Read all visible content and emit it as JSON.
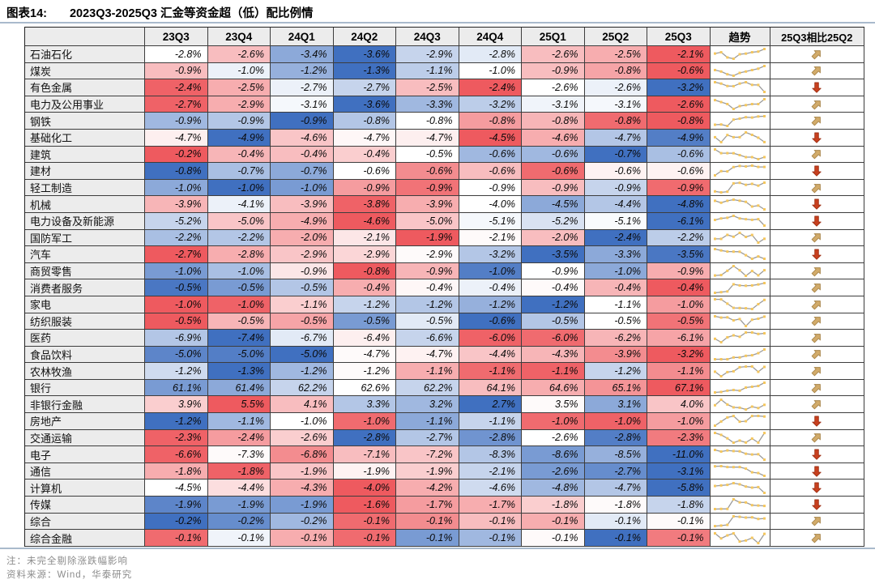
{
  "title": {
    "prefix": "图表14:",
    "text": "2023Q3-2025Q3 汇金等资金超（低）配比例情"
  },
  "notes": [
    "注：未完全剔除涨跌幅影响",
    "资料来源：Wind，华泰研究"
  ],
  "colors": {
    "heat_pos": "#ee5a5f",
    "heat_neg": "#4070c0",
    "arrow_up": "#d2ab6a",
    "arrow_up_edge": "#a8854a",
    "arrow_down": "#c8401f",
    "arrow_down_edge": "#9e3014",
    "spark_line": "#9b9b9b",
    "spark_dot": "#f5c75e",
    "rule": "#a9bacc",
    "header_bg": "#ececec",
    "border": "#3d3d3d"
  },
  "icons": {
    "up": "arrow-up-right",
    "down": "arrow-down"
  },
  "chart_data": {
    "type": "heatmap",
    "title": "图表14: 2023Q3-2025Q3 汇金等资金超（低）配比例情",
    "columns": [
      "23Q3",
      "23Q4",
      "24Q1",
      "24Q2",
      "24Q3",
      "24Q4",
      "25Q1",
      "25Q2",
      "25Q3"
    ],
    "trend_label": "趋势",
    "change_label": "25Q3相比25Q2",
    "value_unit": "%",
    "legend_note": "cell tint: red = high within row, blue = low within row; tints read from screenshot",
    "rows": [
      {
        "label": "石油石化",
        "values": [
          -2.8,
          -2.6,
          -3.4,
          -3.6,
          -2.9,
          -2.8,
          -2.6,
          -2.5,
          -2.1
        ],
        "tints": [
          0,
          0.4,
          -0.6,
          -1,
          -0.3,
          -0.15,
          0.4,
          0.5,
          1
        ],
        "change": "up"
      },
      {
        "label": "煤炭",
        "values": [
          -0.9,
          -1.0,
          -1.2,
          -1.3,
          -1.1,
          -1.0,
          -0.9,
          -0.8,
          -0.6
        ],
        "tints": [
          0.4,
          -0.1,
          -0.55,
          -1,
          -0.35,
          0,
          0.4,
          0.55,
          1
        ],
        "change": "up"
      },
      {
        "label": "有色金属",
        "values": [
          -2.4,
          -2.5,
          -2.7,
          -2.7,
          -2.5,
          -2.4,
          -2.6,
          -2.6,
          -3.2
        ],
        "tints": [
          0.95,
          0.5,
          -0.1,
          -0.3,
          0.4,
          1,
          0,
          -0.1,
          -1
        ],
        "change": "down"
      },
      {
        "label": "电力及公用事业",
        "values": [
          -2.7,
          -2.9,
          -3.1,
          -3.6,
          -3.3,
          -3.2,
          -3.1,
          -3.1,
          -2.6
        ],
        "tints": [
          0.95,
          0.5,
          -0.05,
          -1,
          -0.5,
          -0.35,
          -0.08,
          -0.05,
          1
        ],
        "change": "up"
      },
      {
        "label": "钢铁",
        "values": [
          -0.9,
          -0.9,
          -0.9,
          -0.8,
          -0.8,
          -0.8,
          -0.8,
          -0.8,
          -0.8
        ],
        "tints": [
          -0.5,
          -0.4,
          -1,
          -0.4,
          0,
          0.6,
          0.45,
          0.9,
          1
        ],
        "change": "up"
      },
      {
        "label": "基础化工",
        "values": [
          -4.7,
          -4.9,
          -4.6,
          -4.7,
          -4.7,
          -4.5,
          -4.6,
          -4.7,
          -4.9
        ],
        "tints": [
          0.1,
          -1,
          0.35,
          0.05,
          0.1,
          1,
          0.5,
          -0.4,
          -0.9
        ],
        "change": "down"
      },
      {
        "label": "建筑",
        "values": [
          -0.2,
          -0.4,
          -0.4,
          -0.4,
          -0.5,
          -0.6,
          -0.6,
          -0.7,
          -0.6
        ],
        "tints": [
          1,
          0.45,
          0.4,
          0.3,
          0,
          -0.5,
          -0.5,
          -1,
          -0.45
        ],
        "change": "up"
      },
      {
        "label": "建材",
        "values": [
          -0.8,
          -0.7,
          -0.7,
          -0.6,
          -0.6,
          -0.6,
          -0.6,
          -0.6,
          -0.6
        ],
        "tints": [
          -1,
          -0.45,
          -0.6,
          0,
          0.7,
          0.4,
          0.9,
          0.08,
          0.08
        ],
        "change": "down"
      },
      {
        "label": "轻工制造",
        "values": [
          -1.0,
          -1.0,
          -1.0,
          -0.9,
          -0.9,
          -0.9,
          -0.9,
          -0.9,
          -0.9
        ],
        "tints": [
          -0.6,
          -1,
          -0.7,
          0.6,
          0.85,
          0,
          0.4,
          -0.3,
          0.9
        ],
        "change": "up"
      },
      {
        "label": "机械",
        "values": [
          -3.9,
          -4.1,
          -3.9,
          -3.8,
          -3.9,
          -4.0,
          -4.5,
          -4.4,
          -4.8
        ],
        "tints": [
          0.45,
          -0.1,
          0.4,
          0.95,
          0.5,
          0,
          -0.6,
          -0.4,
          -1
        ],
        "change": "down"
      },
      {
        "label": "电力设备及新能源",
        "values": [
          -5.2,
          -5.0,
          -4.9,
          -4.6,
          -5.0,
          -5.1,
          -5.2,
          -5.1,
          -6.1
        ],
        "tints": [
          -0.3,
          0.35,
          0.5,
          1,
          0.35,
          -0.05,
          -0.2,
          -0.03,
          -1
        ],
        "change": "down"
      },
      {
        "label": "国防军工",
        "values": [
          -2.2,
          -2.2,
          -2.0,
          -2.1,
          -1.9,
          -2.1,
          -2.0,
          -2.4,
          -2.2
        ],
        "tints": [
          -0.45,
          -0.4,
          0.5,
          0.15,
          1,
          0.03,
          0.4,
          -1,
          -0.35
        ],
        "change": "up"
      },
      {
        "label": "汽车",
        "values": [
          -2.7,
          -2.8,
          -2.9,
          -2.9,
          -2.9,
          -3.2,
          -3.5,
          -3.3,
          -3.5
        ],
        "tints": [
          1,
          0.5,
          0.35,
          0.25,
          0.03,
          -0.4,
          -1,
          -0.6,
          -0.95
        ],
        "change": "down"
      },
      {
        "label": "商贸零售",
        "values": [
          -1.0,
          -1.0,
          -0.9,
          -0.8,
          -0.9,
          -1.0,
          -0.9,
          -1.0,
          -0.9
        ],
        "tints": [
          -0.7,
          -0.45,
          0.15,
          1,
          0.45,
          -0.9,
          0,
          -0.6,
          0.5
        ],
        "change": "up"
      },
      {
        "label": "消费者服务",
        "values": [
          -0.5,
          -0.5,
          -0.5,
          -0.4,
          -0.4,
          -0.4,
          -0.4,
          -0.4,
          -0.4
        ],
        "tints": [
          -0.95,
          -0.7,
          -0.4,
          0.5,
          0.05,
          -0.1,
          0.03,
          0.45,
          1
        ],
        "change": "up"
      },
      {
        "label": "家电",
        "values": [
          -1.0,
          -1.0,
          -1.1,
          -1.2,
          -1.2,
          -1.2,
          -1.2,
          -1.1,
          -1.0
        ],
        "tints": [
          1,
          0.95,
          0.3,
          -0.3,
          -0.4,
          -0.55,
          -1,
          0,
          0.6
        ],
        "change": "up"
      },
      {
        "label": "纺织服装",
        "values": [
          -0.5,
          -0.5,
          -0.5,
          -0.5,
          -0.5,
          -0.6,
          -0.5,
          -0.5,
          -0.5
        ],
        "tints": [
          1,
          0.45,
          0.55,
          -0.7,
          -0.15,
          -1,
          -0.4,
          0,
          0.85
        ],
        "change": "up"
      },
      {
        "label": "医药",
        "values": [
          -6.9,
          -7.4,
          -6.7,
          -6.4,
          -6.6,
          -6.0,
          -6.0,
          -6.2,
          -6.1
        ],
        "tints": [
          -0.4,
          -1,
          -0.15,
          0.1,
          -0.3,
          0.95,
          0.9,
          0.45,
          0.55
        ],
        "change": "up"
      },
      {
        "label": "食品饮料",
        "values": [
          -5.0,
          -5.0,
          -5.0,
          -4.7,
          -4.7,
          -4.4,
          -4.3,
          -3.9,
          -3.2
        ],
        "tints": [
          -0.85,
          -0.9,
          -1,
          0.03,
          0.08,
          0.35,
          0.45,
          0.7,
          1
        ],
        "change": "up"
      },
      {
        "label": "农林牧渔",
        "values": [
          -1.2,
          -1.3,
          -1.2,
          -1.2,
          -1.1,
          -1.1,
          -1.1,
          -1.2,
          -1.1
        ],
        "tints": [
          -0.25,
          -1,
          -0.5,
          0.03,
          0.5,
          0.9,
          0.95,
          -0.3,
          0.7
        ],
        "change": "up"
      },
      {
        "label": "银行",
        "values": [
          61.1,
          61.4,
          62.2,
          62.6,
          62.2,
          64.1,
          64.6,
          65.1,
          67.1
        ],
        "tints": [
          -0.7,
          -0.6,
          -0.3,
          0,
          -0.3,
          0.4,
          0.5,
          0.65,
          1
        ],
        "change": "up"
      },
      {
        "label": "非银行金融",
        "values": [
          3.9,
          5.5,
          4.1,
          3.3,
          3.2,
          2.7,
          3.5,
          3.1,
          4.0
        ],
        "tints": [
          0.3,
          1,
          0.4,
          -0.4,
          -0.5,
          -1,
          0.03,
          -0.6,
          0.35
        ],
        "change": "up"
      },
      {
        "label": "房地产",
        "values": [
          -1.2,
          -1.1,
          -1.0,
          -1.0,
          -1.1,
          -1.1,
          -1.0,
          -1.0,
          -1.0
        ],
        "tints": [
          -1,
          -0.5,
          0,
          0.9,
          -0.6,
          -0.3,
          0.9,
          0.95,
          0.6
        ],
        "change": "down"
      },
      {
        "label": "交通运输",
        "values": [
          -2.3,
          -2.4,
          -2.6,
          -2.8,
          -2.7,
          -2.8,
          -2.6,
          -2.8,
          -2.3
        ],
        "tints": [
          0.95,
          0.6,
          0.3,
          -1,
          -0.4,
          -0.75,
          0,
          -0.9,
          0.8
        ],
        "change": "up"
      },
      {
        "label": "电子",
        "values": [
          -6.6,
          -7.3,
          -6.8,
          -7.1,
          -7.2,
          -8.3,
          -8.6,
          -8.5,
          -11.0
        ],
        "tints": [
          0.95,
          0.03,
          0.7,
          0.4,
          0.35,
          -0.4,
          -0.7,
          -0.55,
          -1
        ],
        "change": "down"
      },
      {
        "label": "通信",
        "values": [
          -1.8,
          -1.8,
          -1.9,
          -1.9,
          -1.9,
          -2.1,
          -2.6,
          -2.7,
          -3.1
        ],
        "tints": [
          0.5,
          0.95,
          0.35,
          0.08,
          0.3,
          -0.3,
          -0.7,
          -0.8,
          -1
        ],
        "change": "down"
      },
      {
        "label": "计算机",
        "values": [
          -4.5,
          -4.4,
          -4.3,
          -4.0,
          -4.2,
          -4.6,
          -4.8,
          -4.7,
          -5.8
        ],
        "tints": [
          0,
          0.2,
          0.5,
          1,
          0.5,
          -0.25,
          -0.5,
          -0.4,
          -1
        ],
        "change": "down"
      },
      {
        "label": "传媒",
        "values": [
          -1.9,
          -1.9,
          -1.9,
          -1.6,
          -1.7,
          -1.7,
          -1.8,
          -1.8,
          -1.8
        ],
        "tints": [
          -0.85,
          -0.7,
          -0.7,
          1,
          0.6,
          0.5,
          0.3,
          0.03,
          -0.3
        ],
        "change": "down"
      },
      {
        "label": "综合",
        "values": [
          -0.2,
          -0.2,
          -0.2,
          -0.1,
          -0.1,
          -0.1,
          -0.1,
          -0.1,
          -0.1
        ],
        "tints": [
          -1,
          -0.8,
          -0.5,
          0.9,
          0.7,
          0.4,
          0.5,
          -0.15,
          0.03
        ],
        "change": "up"
      },
      {
        "label": "综合金融",
        "values": [
          -0.1,
          -0.1,
          -0.1,
          -0.1,
          -0.1,
          -0.1,
          -0.1,
          -0.1,
          -0.1
        ],
        "tints": [
          0.9,
          -0.08,
          0.5,
          0.9,
          -0.7,
          -0.5,
          0.03,
          -1,
          0.8
        ],
        "change": "up"
      }
    ]
  }
}
